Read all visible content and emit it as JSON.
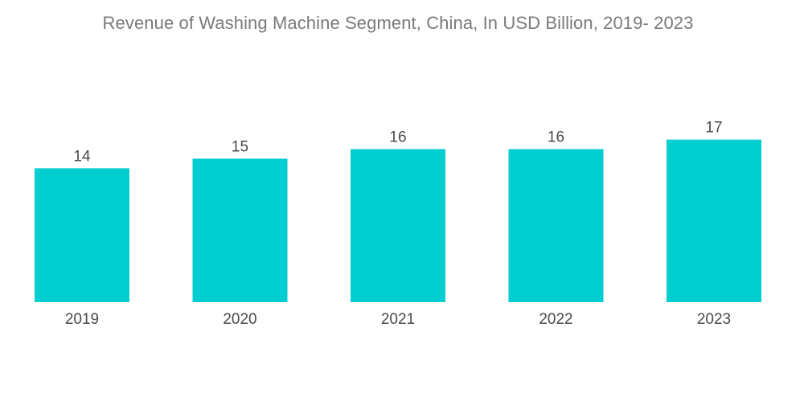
{
  "chart_data": {
    "type": "bar",
    "title": "Revenue of Washing Machine Segment, China, In USD Billion, 2019- 2023",
    "categories": [
      "2019",
      "2020",
      "2021",
      "2022",
      "2023"
    ],
    "values": [
      14,
      15,
      16,
      16,
      17
    ],
    "data_labels": [
      "14",
      "15",
      "16",
      "16",
      "17"
    ],
    "xlabel": "",
    "ylabel": "",
    "ylim": [
      0,
      17
    ],
    "grid": false,
    "legend": "none",
    "bar_color": "#00ced1"
  }
}
